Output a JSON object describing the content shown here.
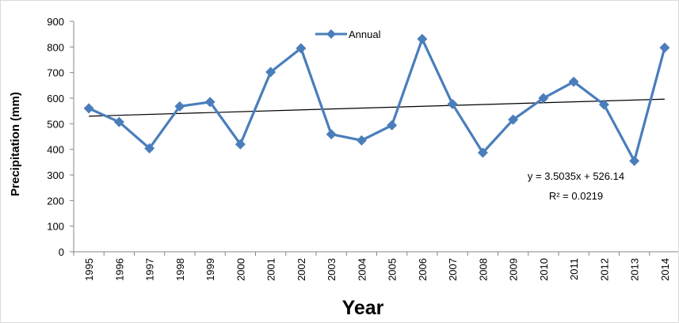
{
  "chart_data": {
    "type": "line",
    "title": "",
    "xlabel": "Year",
    "ylabel": "Precipitation (mm)",
    "categories": [
      "1995",
      "1996",
      "1997",
      "1998",
      "1999",
      "2000",
      "2001",
      "2002",
      "2003",
      "2004",
      "2005",
      "2006",
      "2007",
      "2008",
      "2009",
      "2010",
      "2011",
      "2012",
      "2013",
      "2014"
    ],
    "series": [
      {
        "name": "Annual",
        "color": "#4a7ebb",
        "marker": "diamond",
        "values": [
          560,
          507,
          404,
          568,
          585,
          420,
          702,
          795,
          459,
          435,
          494,
          831,
          577,
          387,
          516,
          600,
          664,
          575,
          355,
          797
        ]
      }
    ],
    "trendline": {
      "type": "linear",
      "color": "#000000",
      "slope": 3.5035,
      "intercept": 526.14,
      "equation_label": "y = 3.5035x + 526.14",
      "r2_label": "R² = 0.0219"
    },
    "ylim": [
      0,
      900
    ],
    "yticks": [
      0,
      100,
      200,
      300,
      400,
      500,
      600,
      700,
      800,
      900
    ],
    "grid": false,
    "legend": {
      "position": "top-center",
      "entries": [
        "Annual"
      ]
    }
  }
}
